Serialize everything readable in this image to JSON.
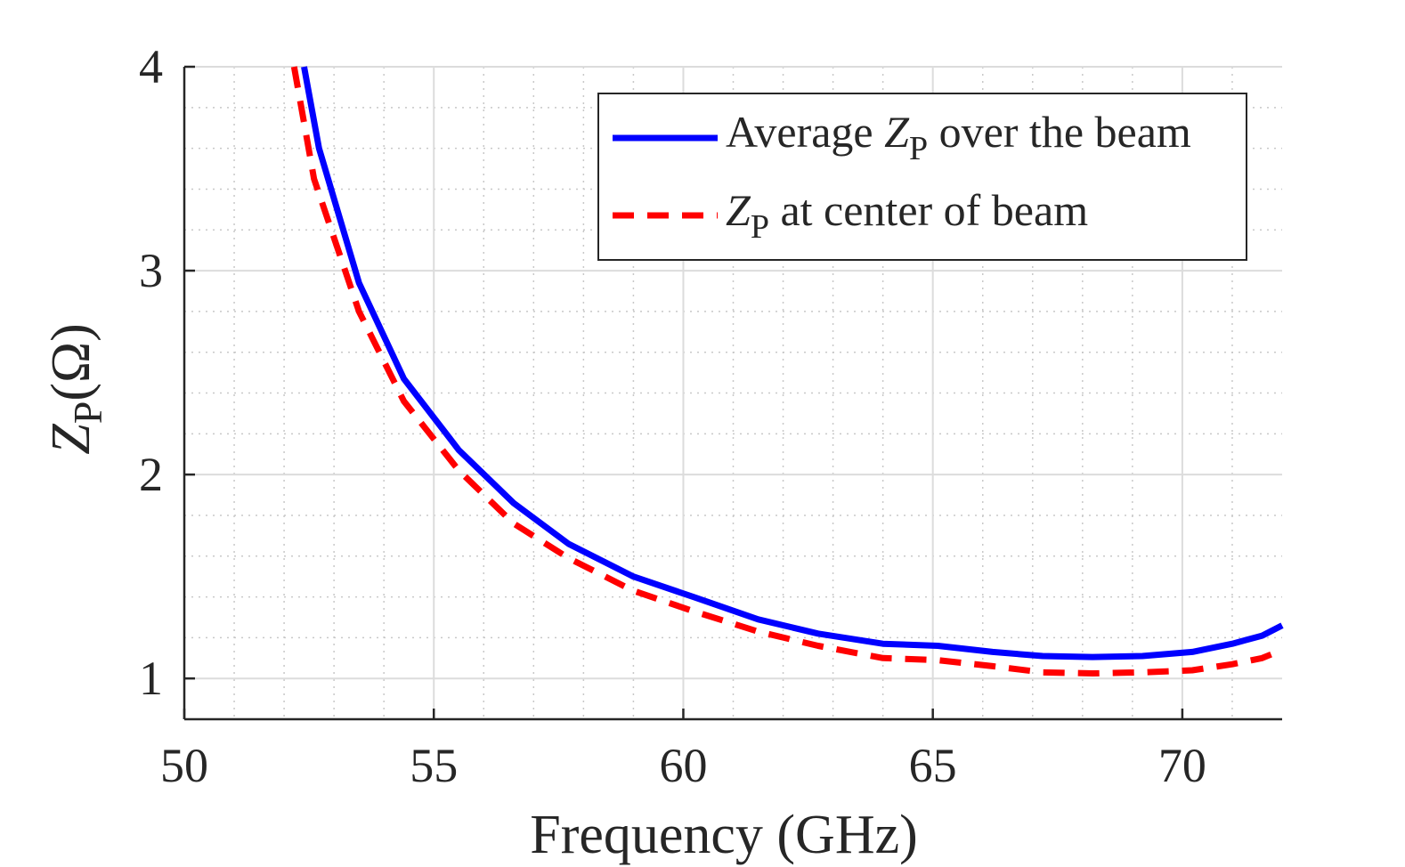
{
  "chart_data": {
    "type": "line",
    "xlabel": "Frequency (GHz)",
    "ylabel": {
      "main": "Z",
      "sub": "P",
      "unit": "(Ω)"
    },
    "xlim": [
      50,
      72
    ],
    "ylim": [
      0.8,
      4
    ],
    "xticks": [
      50,
      55,
      60,
      65,
      70
    ],
    "yticks": [
      1,
      2,
      3,
      4
    ],
    "grid": true,
    "minor_grid": true,
    "legend_position": "top-right",
    "colors": {
      "average": "#0000ff",
      "center": "#ff0000"
    },
    "series": [
      {
        "name": "Average Z_P over the beam",
        "legend": {
          "pre": "Average ",
          "main": "Z",
          "sub": "P",
          "post": " over the beam"
        },
        "style": "solid",
        "x": [
          52.4,
          52.7,
          53.5,
          54.4,
          55.5,
          56.6,
          57.7,
          59.0,
          60.2,
          61.5,
          62.7,
          64.0,
          65.1,
          66.2,
          67.2,
          68.2,
          69.2,
          70.2,
          71.0,
          71.6,
          72.0
        ],
        "y": [
          4.0,
          3.6,
          2.94,
          2.47,
          2.12,
          1.86,
          1.66,
          1.5,
          1.4,
          1.29,
          1.22,
          1.17,
          1.16,
          1.13,
          1.11,
          1.105,
          1.11,
          1.13,
          1.17,
          1.21,
          1.26
        ]
      },
      {
        "name": "Z_P at center of beam",
        "legend": {
          "pre": "",
          "main": "Z",
          "sub": "P",
          "post": " at center of beam"
        },
        "style": "dashed",
        "x": [
          52.2,
          52.6,
          53.5,
          54.4,
          55.5,
          56.6,
          57.7,
          59.0,
          60.2,
          61.5,
          62.7,
          64.0,
          65.1,
          66.2,
          67.2,
          68.2,
          69.2,
          70.2,
          71.0,
          71.6,
          72.0
        ],
        "y": [
          4.0,
          3.45,
          2.8,
          2.36,
          2.02,
          1.76,
          1.59,
          1.43,
          1.33,
          1.23,
          1.16,
          1.1,
          1.09,
          1.06,
          1.03,
          1.025,
          1.03,
          1.04,
          1.07,
          1.1,
          1.14
        ]
      }
    ]
  }
}
